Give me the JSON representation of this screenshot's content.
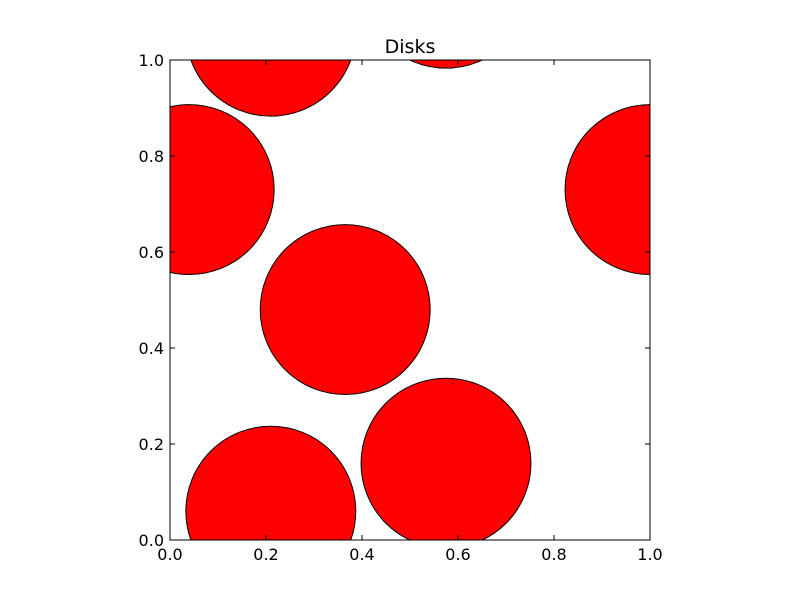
{
  "chart_data": {
    "type": "scatter",
    "title": "Disks",
    "xlabel": "",
    "ylabel": "",
    "xlim": [
      0.0,
      1.0
    ],
    "ylim": [
      0.0,
      1.0
    ],
    "xticks": [
      "0.0",
      "0.2",
      "0.4",
      "0.6",
      "0.8",
      "1.0"
    ],
    "yticks": [
      "0.0",
      "0.2",
      "0.4",
      "0.6",
      "0.8",
      "1.0"
    ],
    "grid": false,
    "disk_radius": 0.177,
    "fill_color": "#ff0000",
    "edge_color": "#000000",
    "disks": [
      {
        "x": 0.21,
        "y": 0.06
      },
      {
        "x": 0.575,
        "y": 0.16
      },
      {
        "x": 0.365,
        "y": 0.48
      },
      {
        "x": 0.04,
        "y": 0.73
      },
      {
        "x": 1.0,
        "y": 0.73
      },
      {
        "x": 0.21,
        "y": 1.06
      },
      {
        "x": 0.575,
        "y": 1.16
      }
    ]
  }
}
